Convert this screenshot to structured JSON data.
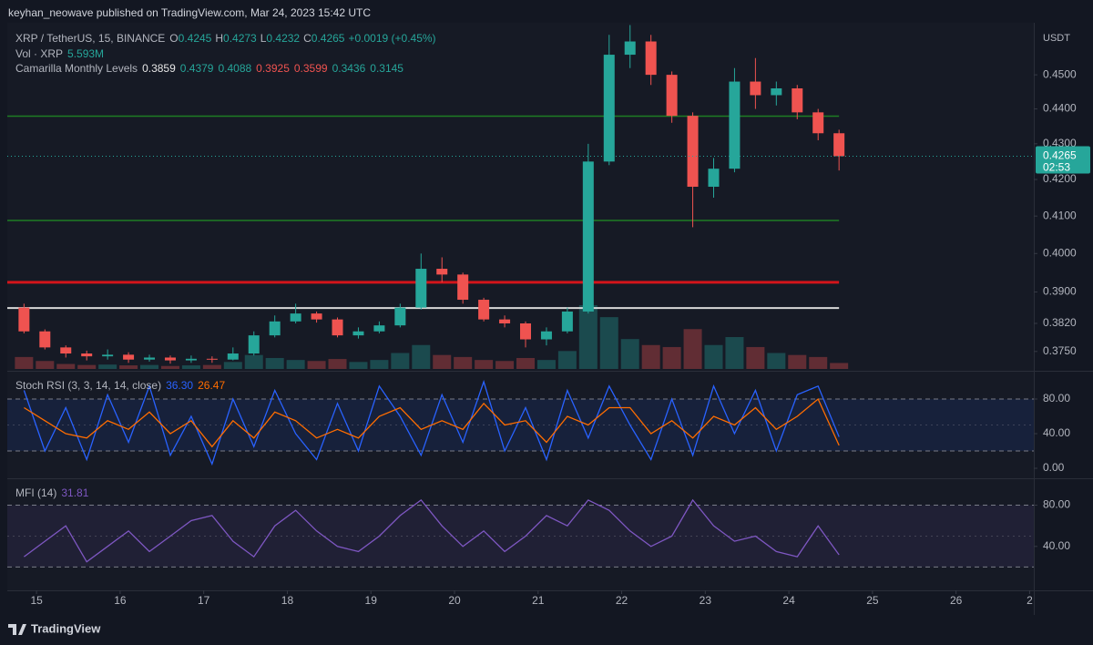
{
  "header": {
    "publisher": "keyhan_neowave published on TradingView.com, Mar 24, 2023 15:42 UTC"
  },
  "footer": {
    "brand": "TradingView"
  },
  "chart_data": [
    {
      "type": "candlestick",
      "symbol": "XRP / TetherUS, 15, BINANCE",
      "ohlc_labels": [
        "O",
        "H",
        "L",
        "C"
      ],
      "ohlc_values": [
        "0.4245",
        "0.4273",
        "0.4232",
        "0.4265"
      ],
      "change": "+0.0019 (+0.45%)",
      "volume_label": "Vol · XRP",
      "volume_last": "5.593M",
      "indicator": "Camarilla Monthly Levels",
      "y_unit": "USDT",
      "log": true,
      "ylim": [
        0.3707,
        0.4657
      ],
      "yticks": [
        {
          "value": 0.45,
          "label": "0.4500"
        },
        {
          "value": 0.44,
          "label": "0.4400"
        },
        {
          "value": 0.43,
          "label": "0.4300"
        },
        {
          "value": 0.42,
          "label": "0.4200"
        },
        {
          "value": 0.41,
          "label": "0.4100"
        },
        {
          "value": 0.4,
          "label": "0.4000"
        },
        {
          "value": 0.39,
          "label": "0.3900"
        },
        {
          "value": 0.382,
          "label": "0.3820"
        },
        {
          "value": 0.375,
          "label": "0.3750"
        }
      ],
      "xlim": [
        14.65,
        26.93
      ],
      "xticks": [
        15,
        16,
        17,
        18,
        19,
        20,
        21,
        22,
        23,
        24,
        25,
        26,
        {
          "value": 26.88,
          "label": "2"
        }
      ],
      "up_color": "#26a69a",
      "down_color": "#ef5350",
      "last_price": 0.4265,
      "countdown": "02:53",
      "levels": [
        {
          "value": 0.3859,
          "color": "#d8d8d8",
          "width": 2
        },
        {
          "value": 0.4379,
          "color": "#1e7d24",
          "width": 1.5
        },
        {
          "value": 0.4088,
          "color": "#1e7d24",
          "width": 1.5
        },
        {
          "value": 0.3925,
          "color": "#d3141b",
          "width": 3
        },
        {
          "value": 0.3599,
          "color": "#d3141b",
          "width": 3
        },
        {
          "value": 0.3436,
          "color": "#1e7d24",
          "width": 1.5
        },
        {
          "value": 0.3145,
          "color": "#1e7d24",
          "width": 1.5
        }
      ],
      "x": [
        14.85,
        15.1,
        15.35,
        15.6,
        15.85,
        16.1,
        16.35,
        16.6,
        16.85,
        17.1,
        17.35,
        17.6,
        17.85,
        18.1,
        18.35,
        18.6,
        18.85,
        19.1,
        19.35,
        19.6,
        19.85,
        20.1,
        20.35,
        20.6,
        20.85,
        21.1,
        21.35,
        21.6,
        21.85,
        22.1,
        22.35,
        22.6,
        22.85,
        23.1,
        23.35,
        23.6,
        23.85,
        24.1,
        24.35,
        24.6
      ],
      "open": [
        0.386,
        0.38,
        0.376,
        0.3745,
        0.3738,
        0.3742,
        0.373,
        0.3735,
        0.3728,
        0.3732,
        0.373,
        0.3745,
        0.379,
        0.3825,
        0.3845,
        0.383,
        0.379,
        0.38,
        0.3815,
        0.386,
        0.396,
        0.3945,
        0.388,
        0.383,
        0.382,
        0.378,
        0.38,
        0.385,
        0.425,
        0.456,
        0.46,
        0.45,
        0.438,
        0.418,
        0.423,
        0.448,
        0.444,
        0.446,
        0.439,
        0.433
      ],
      "high": [
        0.387,
        0.3805,
        0.3765,
        0.3752,
        0.3755,
        0.3748,
        0.3742,
        0.374,
        0.374,
        0.3738,
        0.376,
        0.38,
        0.384,
        0.387,
        0.385,
        0.3835,
        0.381,
        0.3825,
        0.387,
        0.4,
        0.399,
        0.395,
        0.3885,
        0.384,
        0.3825,
        0.381,
        0.386,
        0.43,
        0.462,
        0.465,
        0.462,
        0.451,
        0.439,
        0.426,
        0.452,
        0.455,
        0.448,
        0.447,
        0.44,
        0.434
      ],
      "low": [
        0.3795,
        0.3755,
        0.3735,
        0.3728,
        0.373,
        0.3722,
        0.3725,
        0.372,
        0.3722,
        0.3722,
        0.3728,
        0.374,
        0.3785,
        0.382,
        0.3822,
        0.3785,
        0.3782,
        0.3795,
        0.381,
        0.3855,
        0.3925,
        0.387,
        0.3825,
        0.381,
        0.376,
        0.3765,
        0.3795,
        0.3845,
        0.424,
        0.452,
        0.447,
        0.436,
        0.407,
        0.415,
        0.422,
        0.44,
        0.441,
        0.437,
        0.431,
        0.4225
      ],
      "close": [
        0.38,
        0.376,
        0.3745,
        0.3738,
        0.3742,
        0.373,
        0.3735,
        0.3728,
        0.3732,
        0.373,
        0.3745,
        0.379,
        0.3825,
        0.3845,
        0.383,
        0.379,
        0.38,
        0.3815,
        0.386,
        0.396,
        0.3945,
        0.388,
        0.383,
        0.382,
        0.378,
        0.38,
        0.385,
        0.425,
        0.456,
        0.46,
        0.45,
        0.438,
        0.418,
        0.423,
        0.448,
        0.444,
        0.446,
        0.439,
        0.433,
        0.4265
      ],
      "volume": [
        60,
        40,
        25,
        20,
        22,
        18,
        20,
        15,
        18,
        20,
        35,
        70,
        55,
        45,
        40,
        50,
        35,
        45,
        80,
        120,
        70,
        60,
        45,
        40,
        55,
        45,
        90,
        320,
        260,
        150,
        120,
        110,
        200,
        120,
        160,
        110,
        80,
        70,
        60,
        30
      ]
    },
    {
      "type": "line",
      "title": "Stoch RSI (3, 3, 14, 14, close)",
      "last_values": [
        "36.30",
        "26.47"
      ],
      "ylim": [
        -8.4,
        109.5
      ],
      "yticks": [
        {
          "value": 80,
          "label": "80.00"
        },
        {
          "value": 40,
          "label": "40.00"
        },
        {
          "value": 0,
          "label": "0.00"
        }
      ],
      "band": [
        20,
        80
      ],
      "midline": 50,
      "band_color": "#2962ff",
      "series": [
        {
          "name": "K",
          "color": "#2962ff",
          "values": [
            90,
            20,
            70,
            10,
            85,
            30,
            95,
            15,
            60,
            5,
            80,
            25,
            90,
            40,
            10,
            75,
            20,
            95,
            60,
            15,
            85,
            30,
            100,
            20,
            70,
            10,
            90,
            35,
            95,
            50,
            10,
            80,
            15,
            95,
            40,
            90,
            20,
            85,
            95,
            36.3
          ]
        },
        {
          "name": "D",
          "color": "#ff6d00",
          "values": [
            70,
            55,
            40,
            35,
            55,
            45,
            65,
            40,
            55,
            25,
            55,
            35,
            65,
            55,
            35,
            45,
            35,
            60,
            70,
            45,
            55,
            45,
            75,
            50,
            55,
            30,
            60,
            50,
            70,
            70,
            40,
            55,
            35,
            60,
            50,
            70,
            45,
            60,
            80,
            26.47
          ]
        }
      ]
    },
    {
      "type": "line",
      "title": "MFI (14)",
      "last_values": [
        "31.81"
      ],
      "ylim": [
        -0.9,
        103.5
      ],
      "yticks": [
        {
          "value": 80,
          "label": "80.00"
        },
        {
          "value": 40,
          "label": "40.00"
        }
      ],
      "band": [
        20,
        80
      ],
      "midline": 50,
      "band_color": "#7e57c2",
      "series": [
        {
          "name": "MFI",
          "color": "#7e57c2",
          "values": [
            30,
            45,
            60,
            25,
            40,
            55,
            35,
            50,
            65,
            70,
            45,
            30,
            60,
            75,
            55,
            40,
            35,
            50,
            70,
            85,
            60,
            40,
            55,
            35,
            50,
            70,
            60,
            85,
            75,
            55,
            40,
            50,
            85,
            60,
            45,
            50,
            35,
            30,
            60,
            31.81
          ]
        }
      ]
    }
  ]
}
